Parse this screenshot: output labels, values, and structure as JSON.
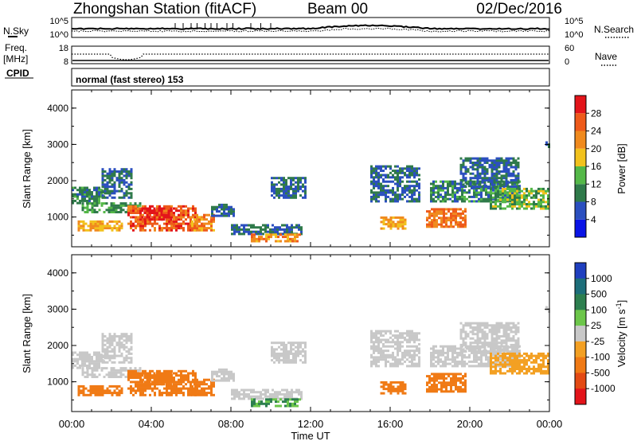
{
  "header": {
    "station": "Zhongshan Station (fitACF)",
    "beam": "Beam 00",
    "date": "02/Dec/2016"
  },
  "top_panels": {
    "nsky_label": "N.Sky",
    "nsky_ticks": [
      "10^5",
      "10^0"
    ],
    "nsearch_label": "N.Search",
    "nsearch_ticks": [
      "10^5",
      "10^0"
    ],
    "freq_label_1": "Freq.",
    "freq_label_2": "[MHz]",
    "freq_ticks": [
      "18",
      "8"
    ],
    "nave_label": "Nave",
    "nave_ticks": [
      "60",
      "0"
    ],
    "cpid_label": "CPID",
    "cpid_value": "normal (fast stereo) 153"
  },
  "power_panel": {
    "ylabel": "Slant Range [km]",
    "yticks": [
      "4000",
      "3000",
      "2000",
      "1000"
    ],
    "colorbar_label": "Power [dB]",
    "colorbar_ticks": [
      "28",
      "24",
      "20",
      "16",
      "12",
      "8",
      "4"
    ],
    "colors": [
      "#0a14e6",
      "#2b4fbf",
      "#2f7a4a",
      "#54b848",
      "#f2c21d",
      "#f08a1e",
      "#ee5a1a",
      "#e3141a"
    ]
  },
  "velocity_panel": {
    "ylabel": "Slant Range [km]",
    "yticks": [
      "4000",
      "3000",
      "2000",
      "1000"
    ],
    "colorbar_label": "Velocity [m s",
    "colorbar_exp": "-1",
    "colorbar_label_close": "]",
    "colorbar_ticks": [
      "1000",
      "500",
      "100",
      "25",
      "-25",
      "-100",
      "-500",
      "-1000"
    ],
    "colors": [
      "#1f3fbf",
      "#1d6e7a",
      "#2d7f4f",
      "#6cc64a",
      "#c8c8c8",
      "#f3a023",
      "#f07a15",
      "#e34a14",
      "#e3141a"
    ]
  },
  "xaxis": {
    "ticks": [
      "00:00",
      "04:00",
      "08:00",
      "12:00",
      "16:00",
      "20:00",
      "00:00"
    ],
    "label": "Time UT"
  },
  "chart_data": {
    "type": "heatmap",
    "title": "Zhongshan Station (fitACF)",
    "panels": [
      {
        "name": "Power",
        "ylabel": "Slant Range [km]",
        "colorbar": "Power [dB]",
        "zlim": [
          0,
          30
        ],
        "ylim": [
          180,
          4500
        ]
      },
      {
        "name": "Velocity",
        "ylabel": "Slant Range [km]",
        "colorbar": "Velocity [m s-1]",
        "zlim": [
          -1000,
          1000
        ],
        "ylim": [
          180,
          4500
        ]
      }
    ],
    "xlabel": "Time UT",
    "xlim": [
      "00:00",
      "24:00"
    ],
    "regions": [
      {
        "t": [
          0.0,
          1.6
        ],
        "range": [
          1350,
          1800
        ],
        "power": 8,
        "velocity": 0
      },
      {
        "t": [
          0.5,
          3.5
        ],
        "range": [
          1100,
          1400
        ],
        "power": 10,
        "velocity": 0
      },
      {
        "t": [
          1.5,
          3.0
        ],
        "range": [
          1500,
          2300
        ],
        "power": 6,
        "velocity": 0
      },
      {
        "t": [
          0.3,
          2.5
        ],
        "range": [
          600,
          900
        ],
        "power": 18,
        "velocity": -200
      },
      {
        "t": [
          2.8,
          6.2
        ],
        "range": [
          600,
          1300
        ],
        "power": 24,
        "velocity": -300
      },
      {
        "t": [
          3.5,
          5.0
        ],
        "range": [
          900,
          1250
        ],
        "power": 28,
        "velocity": -300
      },
      {
        "t": [
          6.0,
          7.2
        ],
        "range": [
          600,
          1050
        ],
        "power": 20,
        "velocity": -200
      },
      {
        "t": [
          7.0,
          8.2
        ],
        "range": [
          1000,
          1350
        ],
        "power": 6,
        "velocity": 0
      },
      {
        "t": [
          8.0,
          11.5
        ],
        "range": [
          500,
          800
        ],
        "power": 6,
        "velocity": 0
      },
      {
        "t": [
          9.0,
          11.5
        ],
        "range": [
          300,
          500
        ],
        "power": 20,
        "velocity": 60
      },
      {
        "t": [
          10.0,
          11.8
        ],
        "range": [
          1500,
          2100
        ],
        "power": 6,
        "velocity": 0
      },
      {
        "t": [
          15.0,
          17.5
        ],
        "range": [
          1400,
          2400
        ],
        "power": 6,
        "velocity": 0
      },
      {
        "t": [
          15.5,
          16.8
        ],
        "range": [
          650,
          1000
        ],
        "power": 18,
        "velocity": -300
      },
      {
        "t": [
          17.8,
          19.8
        ],
        "range": [
          700,
          1200
        ],
        "power": 22,
        "velocity": -300
      },
      {
        "t": [
          18.0,
          22.5
        ],
        "range": [
          1400,
          2000
        ],
        "power": 8,
        "velocity": 0
      },
      {
        "t": [
          19.5,
          22.5
        ],
        "range": [
          1800,
          2600
        ],
        "power": 6,
        "velocity": 0
      },
      {
        "t": [
          21.0,
          24.0
        ],
        "range": [
          1200,
          1800
        ],
        "power": 12,
        "velocity": -50
      },
      {
        "t": [
          23.8,
          24.0
        ],
        "range": [
          2900,
          3100
        ],
        "power": 6,
        "velocity": 0
      }
    ]
  }
}
